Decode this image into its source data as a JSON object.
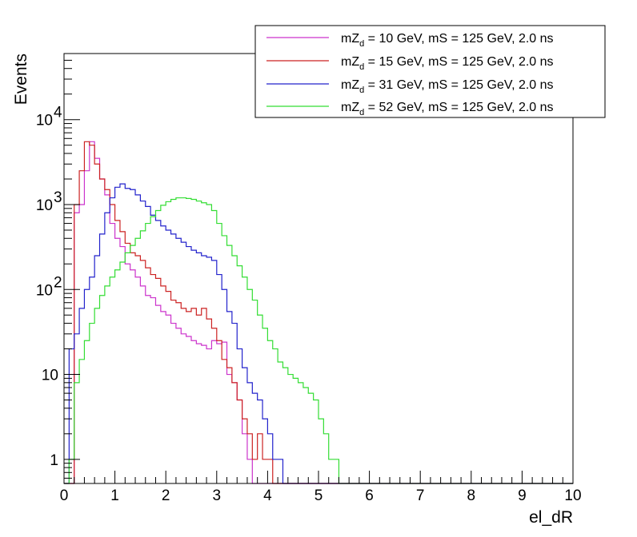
{
  "chart_data": {
    "type": "line",
    "xlabel": "el_dR",
    "ylabel": "Events",
    "xlim": [
      0,
      10
    ],
    "ylim": [
      0.52,
      60000
    ],
    "y_scale": "log",
    "x_ticks": [
      "0",
      "1",
      "2",
      "3",
      "4",
      "5",
      "6",
      "7",
      "8",
      "9",
      "10"
    ],
    "y_ticks": [
      {
        "value": 1,
        "label": "1"
      },
      {
        "value": 10,
        "label": "10"
      },
      {
        "value": 100,
        "label": "10",
        "exp": "2"
      },
      {
        "value": 1000,
        "label": "10",
        "exp": "3"
      },
      {
        "value": 10000,
        "label": "10",
        "exp": "4"
      }
    ],
    "grid": false,
    "legend_position": "top-right",
    "bin_width": 0.1,
    "x_start": 0,
    "series": [
      {
        "name": "mZd = 10 GeV, mS = 125 GeV, 2.0 ns",
        "legend": {
          "pre": "mZ",
          "sub": "d",
          "post": " = 10 GeV, mS = 125 GeV, 2.0 ns"
        },
        "color": "#cc33cc",
        "values": [
          0,
          0,
          800,
          1000,
          2500,
          5500,
          3500,
          2000,
          1300,
          600,
          400,
          320,
          200,
          170,
          140,
          110,
          85,
          80,
          65,
          55,
          50,
          40,
          35,
          30,
          28,
          25,
          23,
          22,
          20,
          25,
          23,
          24,
          10,
          8,
          5,
          2,
          1,
          0,
          0,
          0,
          0,
          0,
          0,
          0,
          0,
          0,
          0,
          0,
          0,
          0,
          0,
          0,
          0,
          0,
          0,
          0,
          0,
          0,
          0,
          0,
          0,
          0,
          0,
          0,
          0,
          0,
          0,
          0,
          0,
          0,
          0,
          0,
          0,
          0,
          0,
          0,
          0,
          0,
          0,
          0,
          0,
          0,
          0,
          0,
          0,
          0,
          0,
          0,
          0,
          0,
          0,
          0,
          0,
          0,
          0,
          0,
          0,
          0,
          0,
          0
        ]
      },
      {
        "name": "mZd = 15 GeV, mS = 125 GeV, 2.0 ns",
        "legend": {
          "pre": "mZ",
          "sub": "d",
          "post": " = 15 GeV, mS = 125 GeV, 2.0 ns"
        },
        "color": "#cc2222",
        "values": [
          0,
          0,
          1000,
          2500,
          5500,
          5000,
          3000,
          2000,
          1500,
          1000,
          650,
          480,
          350,
          270,
          250,
          220,
          180,
          150,
          135,
          110,
          95,
          75,
          70,
          60,
          55,
          60,
          50,
          60,
          45,
          35,
          25,
          15,
          12,
          8,
          5,
          3,
          2,
          1,
          2,
          1,
          1,
          0,
          0,
          0,
          0,
          0,
          0,
          0,
          0,
          0,
          0,
          0,
          0,
          0,
          0,
          0,
          0,
          0,
          0,
          0,
          0,
          0,
          0,
          0,
          0,
          0,
          0,
          0,
          0,
          0,
          0,
          0,
          0,
          0,
          0,
          0,
          0,
          0,
          0,
          0,
          0,
          0,
          0,
          0,
          0,
          0,
          0,
          0,
          0,
          0,
          0,
          0,
          0,
          0,
          0,
          0,
          0,
          0,
          0,
          0
        ]
      },
      {
        "name": "mZd = 31 GeV, mS = 125 GeV, 2.0 ns",
        "legend": {
          "pre": "mZ",
          "sub": "d",
          "post": " = 31 GeV, mS = 125 GeV, 2.0 ns"
        },
        "color": "#2222cc",
        "values": [
          0,
          20,
          30,
          60,
          100,
          140,
          250,
          450,
          800,
          1200,
          1600,
          1750,
          1550,
          1500,
          1300,
          1100,
          950,
          750,
          650,
          560,
          500,
          450,
          400,
          360,
          320,
          290,
          270,
          250,
          240,
          220,
          150,
          100,
          55,
          40,
          20,
          12,
          8,
          6,
          5,
          3,
          2,
          1,
          1,
          0,
          0,
          0,
          0,
          0,
          0,
          0,
          0,
          0,
          0,
          0,
          0,
          0,
          0,
          0,
          0,
          0,
          0,
          0,
          0,
          0,
          0,
          0,
          0,
          0,
          0,
          0,
          0,
          0,
          0,
          0,
          0,
          0,
          0,
          0,
          0,
          0,
          0,
          0,
          0,
          0,
          0,
          0,
          0,
          0,
          0,
          0,
          0,
          0,
          0,
          0,
          0,
          0,
          0,
          0,
          0,
          0
        ]
      },
      {
        "name": "mZd = 52 GeV, mS = 125 GeV, 2.0 ns",
        "legend": {
          "pre": "mZ",
          "sub": "d",
          "post": " = 52 GeV, mS = 125 GeV, 2.0 ns"
        },
        "color": "#33dd33",
        "values": [
          0,
          1,
          8,
          15,
          25,
          40,
          60,
          85,
          110,
          140,
          170,
          210,
          270,
          330,
          400,
          490,
          600,
          720,
          850,
          980,
          1080,
          1150,
          1200,
          1200,
          1180,
          1150,
          1100,
          1050,
          1000,
          850,
          600,
          430,
          330,
          250,
          190,
          140,
          100,
          75,
          50,
          35,
          25,
          20,
          14,
          12,
          10,
          9,
          8,
          7,
          6,
          5,
          3,
          2,
          1,
          1,
          0,
          0,
          0,
          0,
          0,
          0,
          0,
          0,
          0,
          0,
          0,
          0,
          0,
          0,
          0,
          0,
          0,
          0,
          0,
          0,
          0,
          0,
          0,
          0,
          0,
          0,
          0,
          0,
          0,
          0,
          0,
          0,
          0,
          0,
          0,
          0,
          0,
          0,
          0,
          0,
          0,
          0,
          0,
          0,
          0,
          0
        ]
      }
    ]
  }
}
